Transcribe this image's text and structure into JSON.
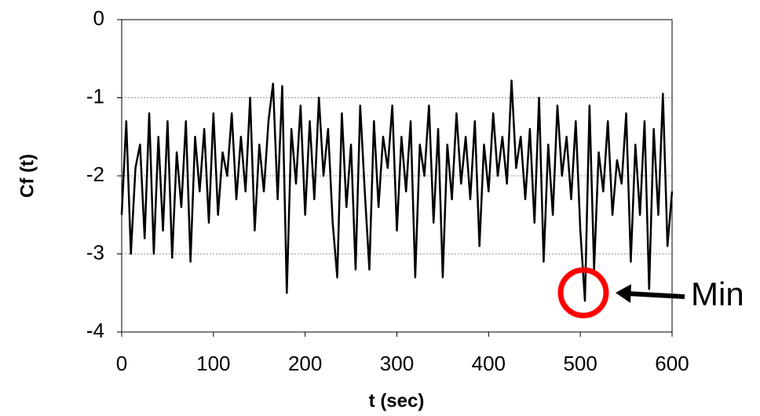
{
  "chart_data": {
    "type": "line",
    "x_label": "t (sec)",
    "y_label": "Cf (t)",
    "annotation": "Min",
    "color": "#000000",
    "grid": true,
    "xlim": [
      0,
      600
    ],
    "xticks": [
      0,
      100,
      200,
      300,
      400,
      500,
      600
    ],
    "ylim": [
      -4,
      0
    ],
    "yticks": [
      0,
      -1,
      -2,
      -3,
      -4
    ],
    "x": [
      0,
      5,
      10,
      15,
      20,
      25,
      30,
      35,
      40,
      45,
      50,
      55,
      60,
      65,
      70,
      75,
      80,
      85,
      90,
      95,
      100,
      105,
      110,
      115,
      120,
      125,
      130,
      135,
      140,
      145,
      150,
      155,
      160,
      165,
      170,
      175,
      180,
      185,
      190,
      195,
      200,
      205,
      210,
      215,
      220,
      225,
      230,
      235,
      240,
      245,
      250,
      255,
      260,
      265,
      270,
      275,
      280,
      285,
      290,
      295,
      300,
      305,
      310,
      315,
      320,
      325,
      330,
      335,
      340,
      345,
      350,
      355,
      360,
      365,
      370,
      375,
      380,
      385,
      390,
      395,
      400,
      405,
      410,
      415,
      420,
      425,
      430,
      435,
      440,
      445,
      450,
      455,
      460,
      465,
      470,
      475,
      480,
      485,
      490,
      495,
      500,
      505,
      510,
      515,
      520,
      525,
      530,
      535,
      540,
      545,
      550,
      555,
      560,
      565,
      570,
      575,
      580,
      585,
      590,
      595,
      600
    ],
    "values": [
      -2.5,
      -1.3,
      -3.0,
      -1.9,
      -1.6,
      -2.8,
      -1.2,
      -3.0,
      -1.5,
      -2.7,
      -1.3,
      -3.05,
      -1.7,
      -2.4,
      -1.3,
      -3.1,
      -1.5,
      -2.2,
      -1.4,
      -2.6,
      -1.2,
      -2.5,
      -1.7,
      -2.0,
      -1.2,
      -2.3,
      -1.5,
      -2.2,
      -1.0,
      -2.7,
      -1.6,
      -2.2,
      -1.3,
      -0.82,
      -2.3,
      -0.85,
      -3.5,
      -1.4,
      -2.1,
      -1.1,
      -2.5,
      -1.3,
      -2.3,
      -1.0,
      -2.0,
      -1.4,
      -2.6,
      -3.3,
      -1.2,
      -2.4,
      -1.6,
      -3.2,
      -1.1,
      -2.2,
      -3.2,
      -1.3,
      -2.4,
      -1.5,
      -1.9,
      -1.1,
      -2.7,
      -1.5,
      -2.2,
      -1.3,
      -3.3,
      -1.6,
      -2.0,
      -1.1,
      -2.6,
      -1.4,
      -3.3,
      -1.6,
      -2.3,
      -1.2,
      -2.1,
      -1.5,
      -2.3,
      -1.3,
      -2.9,
      -1.6,
      -2.2,
      -1.2,
      -2.0,
      -1.5,
      -2.1,
      -0.78,
      -1.9,
      -1.5,
      -2.3,
      -1.4,
      -2.6,
      -1.0,
      -3.1,
      -1.6,
      -2.5,
      -1.1,
      -2.0,
      -1.5,
      -2.3,
      -1.3,
      -2.7,
      -3.6,
      -1.1,
      -3.2,
      -1.7,
      -2.2,
      -1.3,
      -2.5,
      -1.8,
      -2.1,
      -1.2,
      -3.1,
      -1.6,
      -2.5,
      -1.3,
      -3.45,
      -1.4,
      -2.5,
      -0.95,
      -2.9,
      -2.2
    ]
  }
}
